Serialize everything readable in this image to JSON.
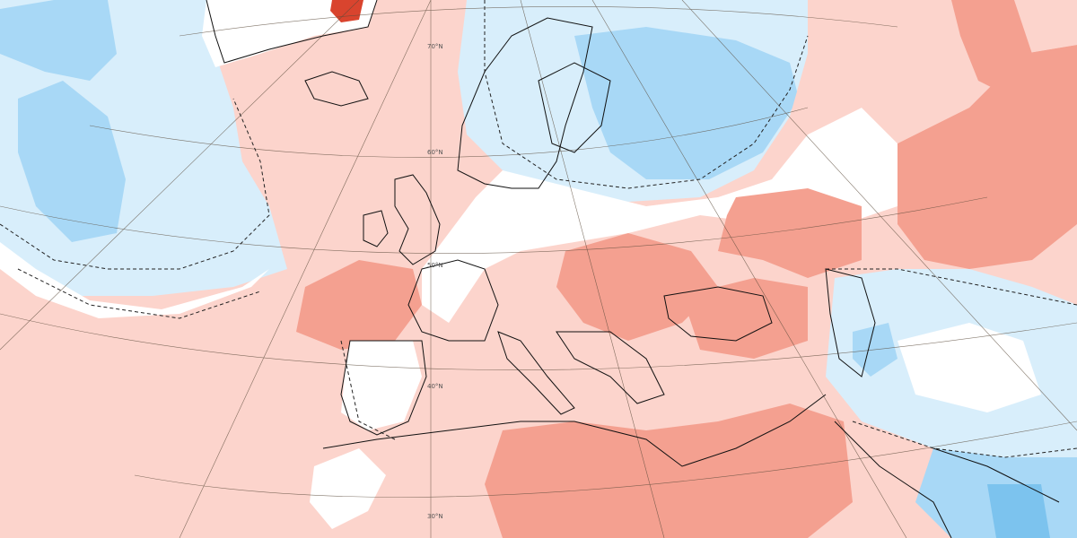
{
  "map": {
    "projection": "polar-stereographic",
    "region": "Europe and North Atlantic",
    "anomaly_colors": {
      "strong_warm": "#f4a090",
      "weak_warm": "#fcd4cc",
      "neutral": "#ffffff",
      "weak_cool": "#d8eefb",
      "moderate_cool": "#a8d8f6",
      "strong_cool": "#7cc3ee",
      "extreme_warm": "#d9442e"
    },
    "lat_labels": [
      "70°N",
      "60°N",
      "50°N",
      "40°N",
      "30°N"
    ]
  }
}
